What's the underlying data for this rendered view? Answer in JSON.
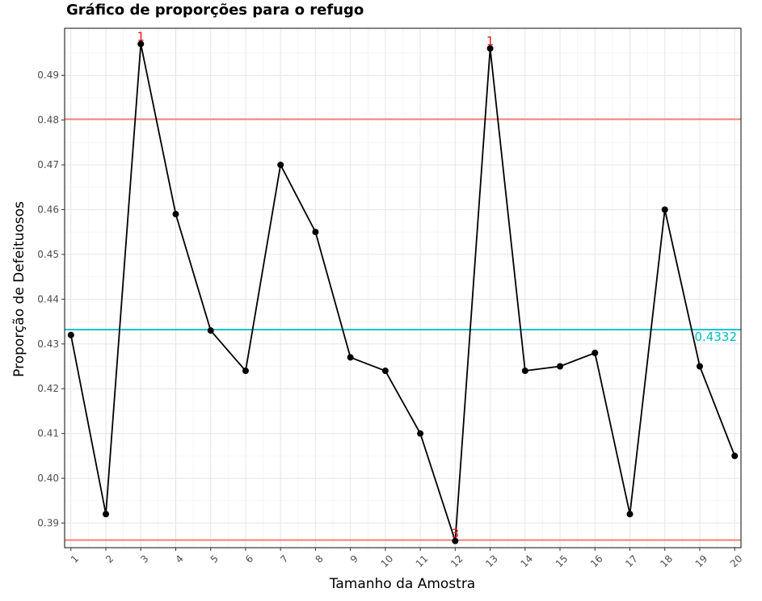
{
  "chart_data": {
    "type": "line",
    "title": "Gráfico de proporções para o refugo",
    "xlabel": "Tamanho da Amostra",
    "ylabel": "Proporção de Defeituosos",
    "x": [
      1,
      2,
      3,
      4,
      5,
      6,
      7,
      8,
      9,
      10,
      11,
      12,
      13,
      14,
      15,
      16,
      17,
      18,
      19,
      20
    ],
    "x_tick_labels": [
      "1",
      "2",
      "3",
      "4",
      "5",
      "6",
      "7",
      "8",
      "9",
      "10",
      "11",
      "12",
      "13",
      "14",
      "15",
      "16",
      "17",
      "18",
      "19",
      "20"
    ],
    "values": [
      0.432,
      0.392,
      0.497,
      0.459,
      0.433,
      0.424,
      0.47,
      0.455,
      0.427,
      0.424,
      0.41,
      0.386,
      0.496,
      0.424,
      0.425,
      0.428,
      0.392,
      0.46,
      0.425,
      0.405
    ],
    "y_ticks": [
      0.39,
      0.4,
      0.41,
      0.42,
      0.43,
      0.44,
      0.45,
      0.46,
      0.47,
      0.48,
      0.49
    ],
    "y_tick_labels": [
      "0.39",
      "0.40",
      "0.41",
      "0.42",
      "0.43",
      "0.44",
      "0.45",
      "0.46",
      "0.47",
      "0.48",
      "0.49"
    ],
    "ylim": [
      0.3845,
      0.5005
    ],
    "xlim": [
      0.82,
      20.18
    ],
    "center_line": {
      "value": 0.4332,
      "label": "0.4332",
      "color": "#00BFC4"
    },
    "control_limits": {
      "ucl": 0.4802,
      "lcl": 0.3862,
      "color": "#F8766D"
    },
    "annotations": [
      {
        "x": 3,
        "y": 0.497,
        "text": "1",
        "color": "#E41A1C"
      },
      {
        "x": 12,
        "y": 0.386,
        "text": "3",
        "color": "#E41A1C"
      },
      {
        "x": 13,
        "y": 0.496,
        "text": "1",
        "color": "#E41A1C"
      }
    ],
    "grid": true,
    "theme": "bw",
    "line_color": "#000000",
    "point_color": "#000000"
  }
}
